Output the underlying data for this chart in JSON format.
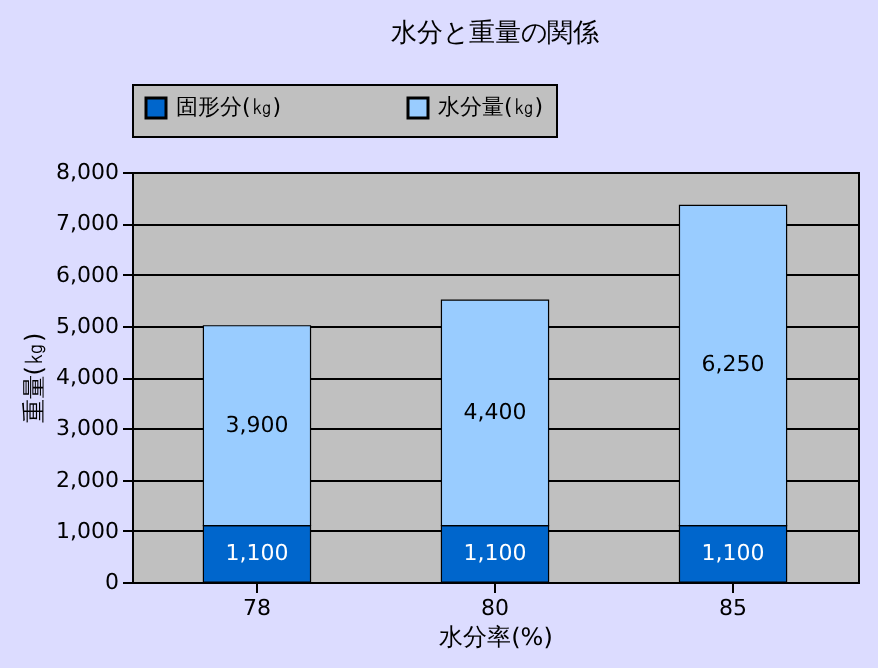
{
  "chart_data": {
    "type": "bar",
    "title": "水分と重量の関係",
    "xlabel": "水分率(%)",
    "ylabel": "重量(㎏)",
    "categories": [
      "78",
      "80",
      "85"
    ],
    "stacked": true,
    "series": [
      {
        "name": "固形分(㎏)",
        "color": "#0066cc",
        "values": [
          1100,
          1100,
          1100
        ],
        "value_labels": [
          "1,100",
          "1,100",
          "1,100"
        ]
      },
      {
        "name": "水分量(㎏)",
        "color": "#99ccff",
        "values": [
          3900,
          4400,
          6250
        ],
        "value_labels": [
          "3,900",
          "4,400",
          "6,250"
        ]
      }
    ],
    "ylim": [
      0,
      8000
    ],
    "yticks": [
      0,
      {
        "value": 1000,
        "label": "1,000"
      },
      {
        "value": 2000,
        "label": "2,000"
      },
      {
        "value": 3000,
        "label": "3,000"
      },
      {
        "value": 4000,
        "label": "4,000"
      },
      {
        "value": 5000,
        "label": "5,000"
      },
      {
        "value": 6000,
        "label": "6,000"
      },
      {
        "value": 7000,
        "label": "7,000"
      },
      {
        "value": 8000,
        "label": "8,000"
      }
    ],
    "grid": "y",
    "legend": "top"
  }
}
